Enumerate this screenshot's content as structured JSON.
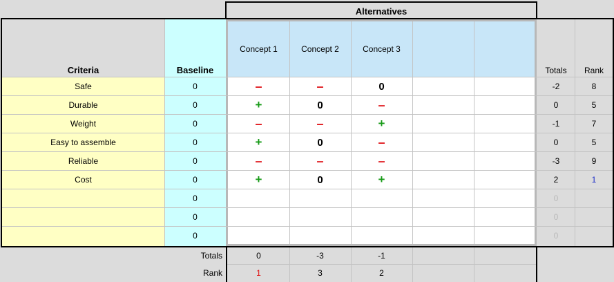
{
  "header": {
    "alternatives": "Alternatives",
    "criteria": "Criteria",
    "baseline": "Baseline",
    "totals": "Totals",
    "rank": "Rank"
  },
  "concepts": [
    "Concept 1",
    "Concept 2",
    "Concept 3",
    "",
    ""
  ],
  "rows": [
    {
      "criterion": "Safe",
      "baseline": "0",
      "cells": [
        "minus",
        "minus",
        "zero",
        "",
        ""
      ],
      "total": "-2",
      "rank": "8"
    },
    {
      "criterion": "Durable",
      "baseline": "0",
      "cells": [
        "plus",
        "zero",
        "minus",
        "",
        ""
      ],
      "total": "0",
      "rank": "5"
    },
    {
      "criterion": "Weight",
      "baseline": "0",
      "cells": [
        "minus",
        "minus",
        "plus",
        "",
        ""
      ],
      "total": "-1",
      "rank": "7"
    },
    {
      "criterion": "Easy to assemble",
      "baseline": "0",
      "cells": [
        "plus",
        "zero",
        "minus",
        "",
        ""
      ],
      "total": "0",
      "rank": "5"
    },
    {
      "criterion": "Reliable",
      "baseline": "0",
      "cells": [
        "minus",
        "minus",
        "minus",
        "",
        ""
      ],
      "total": "-3",
      "rank": "9"
    },
    {
      "criterion": "Cost",
      "baseline": "0",
      "cells": [
        "plus",
        "zero",
        "plus",
        "",
        ""
      ],
      "total": "2",
      "rank": "1"
    },
    {
      "criterion": "",
      "baseline": "0",
      "cells": [
        "",
        "",
        "",
        "",
        ""
      ],
      "total": "0",
      "rank": ""
    },
    {
      "criterion": "",
      "baseline": "0",
      "cells": [
        "",
        "",
        "",
        "",
        ""
      ],
      "total": "0",
      "rank": ""
    },
    {
      "criterion": "",
      "baseline": "0",
      "cells": [
        "",
        "",
        "",
        "",
        ""
      ],
      "total": "0",
      "rank": ""
    }
  ],
  "symbols": {
    "minus": "–",
    "plus": "+",
    "zero": "0"
  },
  "footer": {
    "totals_label": "Totals",
    "rank_label": "Rank",
    "totals": [
      "0",
      "-3",
      "-1",
      "",
      ""
    ],
    "ranks": [
      "1",
      "3",
      "2",
      "",
      ""
    ]
  },
  "colors": {
    "criteria_fill": "#ffffc4",
    "baseline_fill": "#ccffff",
    "concept_header_fill": "#c8e6f8",
    "minus": "#e0191e",
    "plus": "#169a16"
  }
}
